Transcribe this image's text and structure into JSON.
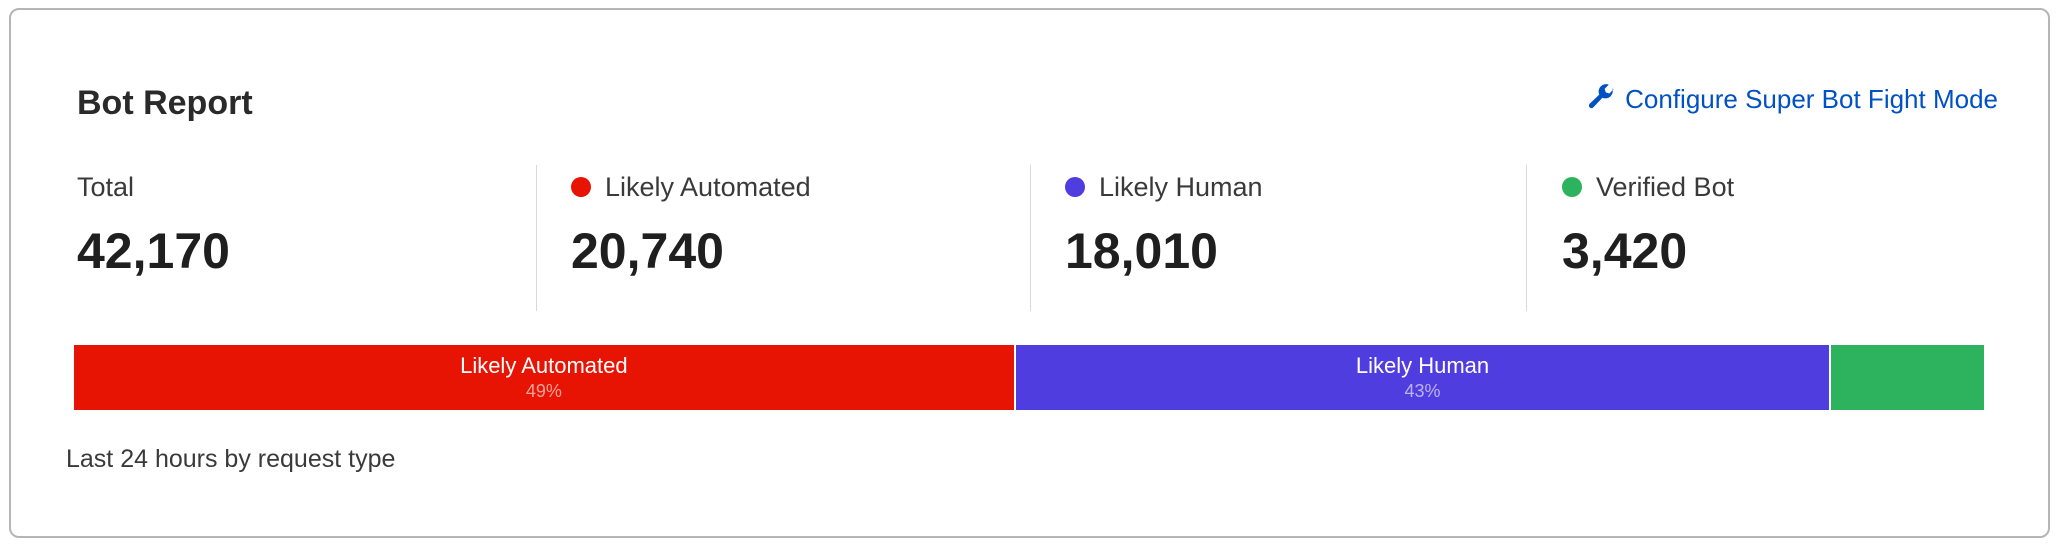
{
  "title": "Bot Report",
  "configure_link": {
    "label": "Configure Super Bot Fight Mode",
    "icon": "wrench-icon",
    "color": "#0051c3"
  },
  "stats": [
    {
      "label": "Total",
      "value": "42,170"
    },
    {
      "label": "Likely Automated",
      "value": "20,740",
      "color": "#e81403"
    },
    {
      "label": "Likely Human",
      "value": "18,010",
      "color": "#4f3ddf"
    },
    {
      "label": "Verified Bot",
      "value": "3,420",
      "color": "#2db35d"
    }
  ],
  "bar": [
    {
      "label": "Likely Automated",
      "percent_label": "49%",
      "share": 49.2,
      "color": "#e81403"
    },
    {
      "label": "Likely Human",
      "percent_label": "43%",
      "share": 42.7,
      "color": "#4f3ddf"
    },
    {
      "label": "",
      "percent_label": "",
      "share": 8.1,
      "color": "#2db35d"
    }
  ],
  "footer": "Last 24 hours by request type"
}
